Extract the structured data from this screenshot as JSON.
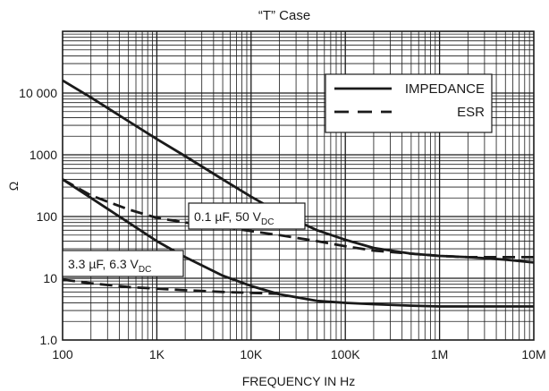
{
  "chart_data": {
    "type": "line",
    "title": "“T” Case",
    "xlabel": "FREQUENCY IN Hz",
    "ylabel": "Ω",
    "xscale": "log",
    "yscale": "log",
    "xlim": [
      100,
      10000000
    ],
    "ylim": [
      1,
      100000
    ],
    "grid": true,
    "x_ticks": [
      {
        "value": 100,
        "label": "100"
      },
      {
        "value": 1000,
        "label": "1K"
      },
      {
        "value": 10000,
        "label": "10K"
      },
      {
        "value": 100000,
        "label": "100K"
      },
      {
        "value": 1000000,
        "label": "1M"
      },
      {
        "value": 10000000,
        "label": "10M"
      }
    ],
    "y_ticks": [
      {
        "value": 1,
        "label": "1.0"
      },
      {
        "value": 10,
        "label": "10"
      },
      {
        "value": 100,
        "label": "100"
      },
      {
        "value": 1000,
        "label": "1000"
      },
      {
        "value": 10000,
        "label": "10 000"
      }
    ],
    "legend": {
      "placement": "top-right",
      "entries": [
        {
          "label": "IMPEDANCE",
          "style": "solid"
        },
        {
          "label": "ESR",
          "style": "dashed"
        }
      ]
    },
    "series": [
      {
        "group": "0.1 µF, 50 V",
        "kind": "IMPEDANCE",
        "style": "solid",
        "x": [
          100,
          200,
          500,
          1000,
          2000,
          5000,
          10000,
          20000,
          50000,
          100000,
          200000,
          500000,
          1000000,
          2000000,
          5000000,
          10000000
        ],
        "y": [
          16000,
          8500,
          3500,
          1800,
          950,
          400,
          210,
          115,
          60,
          42,
          31,
          25,
          23,
          22,
          20,
          18
        ]
      },
      {
        "group": "0.1 µF, 50 V",
        "kind": "ESR",
        "style": "dashed",
        "x": [
          100,
          200,
          500,
          1000,
          2000,
          5000,
          10000,
          20000,
          50000,
          100000,
          200000,
          500000,
          1000000,
          2000000,
          5000000,
          10000000
        ],
        "y": [
          400,
          220,
          130,
          95,
          80,
          68,
          58,
          50,
          40,
          33,
          28,
          25,
          23,
          22,
          22,
          22
        ]
      },
      {
        "group": "3.3 µF, 6.3 V",
        "kind": "IMPEDANCE",
        "style": "solid",
        "x": [
          100,
          200,
          500,
          1000,
          2000,
          5000,
          10000,
          20000,
          50000,
          100000,
          200000,
          500000,
          1000000,
          2000000,
          5000000,
          10000000
        ],
        "y": [
          400,
          200,
          80,
          40,
          22,
          11,
          7.5,
          5.5,
          4.3,
          4.0,
          3.8,
          3.6,
          3.5,
          3.5,
          3.5,
          3.5
        ]
      },
      {
        "group": "3.3 µF, 6.3 V",
        "kind": "ESR",
        "style": "dashed",
        "x": [
          100,
          200,
          500,
          1000,
          2000,
          5000,
          10000,
          20000
        ],
        "y": [
          9.5,
          8.3,
          7.2,
          6.8,
          6.4,
          6.0,
          5.8,
          5.6
        ]
      }
    ],
    "annotations": [
      {
        "text": "0.1 µF, 50 V",
        "sub": "DC",
        "boxed": true
      },
      {
        "text": "3.3 µF, 6.3 V",
        "sub": "DC",
        "boxed": true
      }
    ]
  }
}
